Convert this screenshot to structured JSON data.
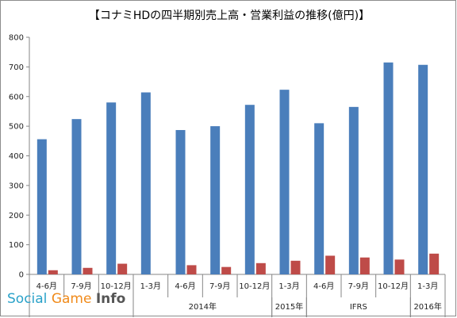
{
  "chart_data": {
    "type": "bar",
    "title": "【コナミHDの四半期別売上高・営業利益の推移(億円)】",
    "categories": [
      "4-6月",
      "7-9月",
      "10-12月",
      "1-3月",
      "4-6月",
      "7-9月",
      "10-12月",
      "1-3月",
      "4-6月",
      "7-9月",
      "10-12月",
      "1-3月"
    ],
    "groups": [
      {
        "label": "",
        "start": 0,
        "end": 2
      },
      {
        "label": "2014年",
        "start": 3,
        "end": 6
      },
      {
        "label": "2015年",
        "start": 7,
        "end": 7
      },
      {
        "label": "IFRS",
        "start": 8,
        "end": 10
      },
      {
        "label": "2016年",
        "start": 11,
        "end": 11
      }
    ],
    "series": [
      {
        "values": [
          456,
          524,
          580,
          614,
          487,
          500,
          572,
          623,
          510,
          565,
          715,
          707
        ],
        "color": "#4a7ebb"
      },
      {
        "values": [
          14,
          22,
          36,
          0,
          31,
          25,
          38,
          46,
          63,
          57,
          50,
          70
        ],
        "color": "#be4b48"
      }
    ],
    "ylim": [
      0,
      800
    ],
    "yticks": [
      0,
      100,
      200,
      300,
      400,
      500,
      600,
      700,
      800
    ],
    "grid": false,
    "legend": "none"
  },
  "watermark": {
    "social": "Social ",
    "game": "Game ",
    "info": "Info"
  }
}
